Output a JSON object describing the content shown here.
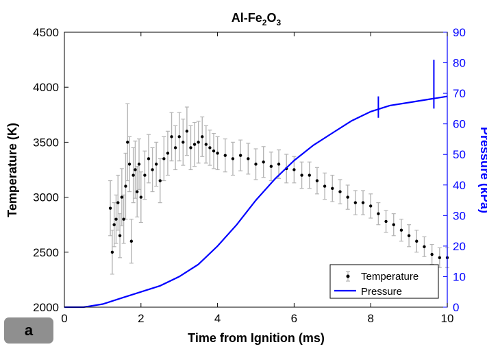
{
  "panel_label": "a",
  "chart_data": {
    "type": "line+scatter",
    "title": "Al-Fe2O3",
    "title_parts": {
      "main": "Al-Fe",
      "sub1": "2",
      "mid": "O",
      "sub2": "3"
    },
    "xlabel": "Time from Ignition (ms)",
    "ylabel_left": "Temperature (K)",
    "ylabel_right": "Pressure (kPa)",
    "xlim": [
      0,
      10
    ],
    "ylim_left": [
      2000,
      4500
    ],
    "ylim_right": [
      0,
      90
    ],
    "x_ticks": [
      "0",
      "2",
      "4",
      "6",
      "8",
      "10"
    ],
    "y_left_ticks": [
      "2000",
      "2500",
      "3000",
      "3500",
      "4000",
      "4500"
    ],
    "y_right_ticks": [
      "0",
      "10",
      "20",
      "30",
      "40",
      "50",
      "60",
      "70",
      "80",
      "90"
    ],
    "grid": false,
    "legend_position": "bottom-right",
    "colors": {
      "temperature": "#000000",
      "error_bars": "#b5b5b5",
      "pressure": "#0000ff"
    },
    "series": [
      {
        "name": "Temperature",
        "axis": "left",
        "style": "points-with-error-bars",
        "x": [
          1.2,
          1.25,
          1.3,
          1.35,
          1.4,
          1.45,
          1.5,
          1.55,
          1.6,
          1.65,
          1.7,
          1.75,
          1.8,
          1.85,
          1.9,
          1.95,
          2.0,
          2.1,
          2.2,
          2.3,
          2.4,
          2.5,
          2.6,
          2.7,
          2.8,
          2.9,
          3.0,
          3.1,
          3.2,
          3.3,
          3.4,
          3.5,
          3.6,
          3.7,
          3.8,
          3.9,
          4.0,
          4.2,
          4.4,
          4.6,
          4.8,
          5.0,
          5.2,
          5.4,
          5.6,
          5.8,
          6.0,
          6.2,
          6.4,
          6.6,
          6.8,
          7.0,
          7.2,
          7.4,
          7.6,
          7.8,
          8.0,
          8.2,
          8.4,
          8.6,
          8.8,
          9.0,
          9.2,
          9.4,
          9.6,
          9.8,
          10.0
        ],
        "y": [
          2900,
          2500,
          2750,
          2800,
          2950,
          2650,
          3000,
          2800,
          3100,
          3500,
          3300,
          2600,
          3200,
          3250,
          3050,
          3300,
          3000,
          3200,
          3350,
          3250,
          3300,
          3150,
          3350,
          3400,
          3550,
          3450,
          3550,
          3500,
          3600,
          3450,
          3480,
          3500,
          3550,
          3480,
          3450,
          3420,
          3400,
          3380,
          3350,
          3380,
          3350,
          3300,
          3320,
          3280,
          3300,
          3260,
          3250,
          3200,
          3200,
          3150,
          3100,
          3080,
          3050,
          3000,
          2950,
          2950,
          2920,
          2850,
          2780,
          2750,
          2700,
          2650,
          2600,
          2550,
          2480,
          2450,
          2450
        ],
        "error": [
          250,
          200,
          200,
          220,
          250,
          200,
          260,
          220,
          300,
          350,
          250,
          200,
          250,
          260,
          230,
          230,
          230,
          220,
          220,
          200,
          200,
          200,
          200,
          200,
          220,
          200,
          220,
          210,
          220,
          200,
          200,
          190,
          180,
          170,
          160,
          160,
          150,
          150,
          150,
          140,
          140,
          140,
          140,
          130,
          130,
          130,
          120,
          120,
          120,
          120,
          120,
          120,
          110,
          110,
          110,
          110,
          110,
          100,
          100,
          100,
          100,
          100,
          100,
          90,
          90,
          90,
          90
        ]
      },
      {
        "name": "Pressure",
        "axis": "right",
        "style": "line",
        "x": [
          0,
          0.5,
          1.0,
          1.5,
          2.0,
          2.5,
          3.0,
          3.5,
          4.0,
          4.5,
          5.0,
          5.5,
          6.0,
          6.5,
          7.0,
          7.5,
          8.0,
          8.5,
          9.0,
          9.5,
          10.0
        ],
        "y": [
          0,
          0,
          1,
          3,
          5,
          7,
          10,
          14,
          20,
          27,
          35,
          42,
          48,
          53,
          57,
          61,
          64,
          66,
          67,
          68,
          69
        ]
      }
    ],
    "annotations": [
      {
        "x": 8.2,
        "y_from": 62,
        "y_to": 69,
        "axis": "right",
        "type": "pressure-spike"
      },
      {
        "x": 9.65,
        "y_from": 65,
        "y_to": 81,
        "axis": "right",
        "type": "pressure-spike"
      }
    ]
  }
}
